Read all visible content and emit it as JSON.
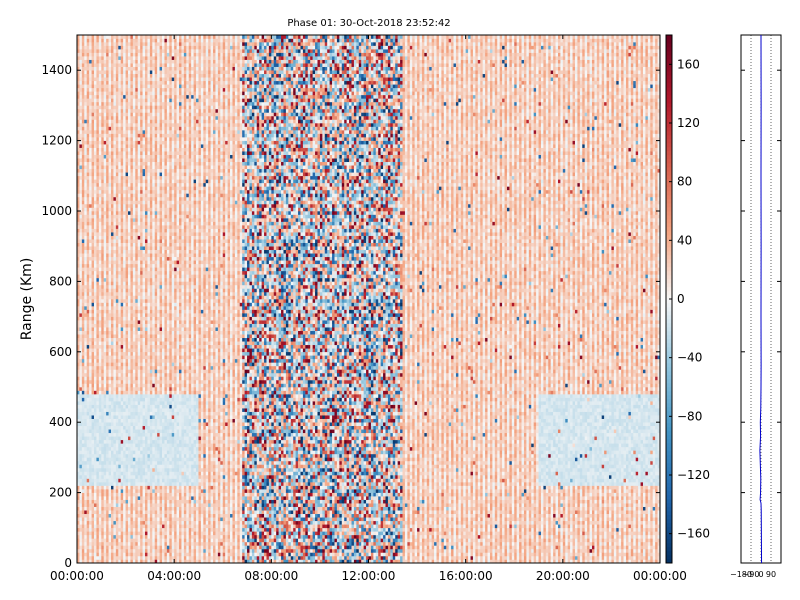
{
  "chart_data": [
    {
      "type": "heatmap",
      "title": "Phase 01: 30-Oct-2018 23:52:42",
      "xlabel": "",
      "ylabel": "Range (Km)",
      "x_ticks": [
        "00:00:00",
        "04:00:00",
        "08:00:00",
        "12:00:00",
        "16:00:00",
        "20:00:00",
        "00:00:00"
      ],
      "x_tick_hours": [
        0,
        4,
        8,
        12,
        16,
        20,
        24
      ],
      "xlim_hours": [
        0,
        24
      ],
      "y_ticks": [
        0,
        200,
        400,
        600,
        800,
        1000,
        1200,
        1400
      ],
      "ylim": [
        0,
        1500
      ],
      "colormap": "RdBu_r",
      "colorbar": {
        "ticks": [
          -160,
          -120,
          -80,
          -40,
          0,
          40,
          80,
          120,
          160
        ],
        "tick_labels": [
          "−160",
          "−120",
          "−80",
          "−40",
          "0",
          "40",
          "80",
          "120",
          "160"
        ],
        "range": [
          -180,
          180
        ]
      },
      "value_range": [
        -180,
        180
      ],
      "noisy_band_hours": [
        6.8,
        13.4
      ],
      "low_noise_band_km": [
        220,
        480
      ],
      "colors": {
        "positive": "#b2182b",
        "negative": "#2166ac",
        "neutral": "#f7f7f7",
        "axis": "#000000"
      }
    },
    {
      "type": "line",
      "xlabel": "",
      "ylabel": "",
      "x_ticks": [
        "−180",
        "−90",
        "0",
        "90"
      ],
      "x_tick_values": [
        -180,
        -90,
        0,
        90
      ],
      "xlim": [
        -180,
        180
      ],
      "ylim": [
        0,
        1500
      ],
      "grid": "vertical-dotted",
      "series_color": "#0000cc",
      "profile": [
        {
          "range": 0,
          "phase": 5
        },
        {
          "range": 150,
          "phase": 2
        },
        {
          "range": 170,
          "phase": 0
        },
        {
          "range": 180,
          "phase": -8
        },
        {
          "range": 200,
          "phase": -4
        },
        {
          "range": 240,
          "phase": -2
        },
        {
          "range": 280,
          "phase": -6
        },
        {
          "range": 320,
          "phase": -10
        },
        {
          "range": 360,
          "phase": -4
        },
        {
          "range": 400,
          "phase": -6
        },
        {
          "range": 440,
          "phase": -2
        },
        {
          "range": 500,
          "phase": 0
        },
        {
          "range": 560,
          "phase": 1
        },
        {
          "range": 700,
          "phase": 0
        },
        {
          "range": 900,
          "phase": 1
        },
        {
          "range": 1100,
          "phase": 0
        },
        {
          "range": 1300,
          "phase": 1
        },
        {
          "range": 1500,
          "phase": 0
        }
      ]
    }
  ]
}
